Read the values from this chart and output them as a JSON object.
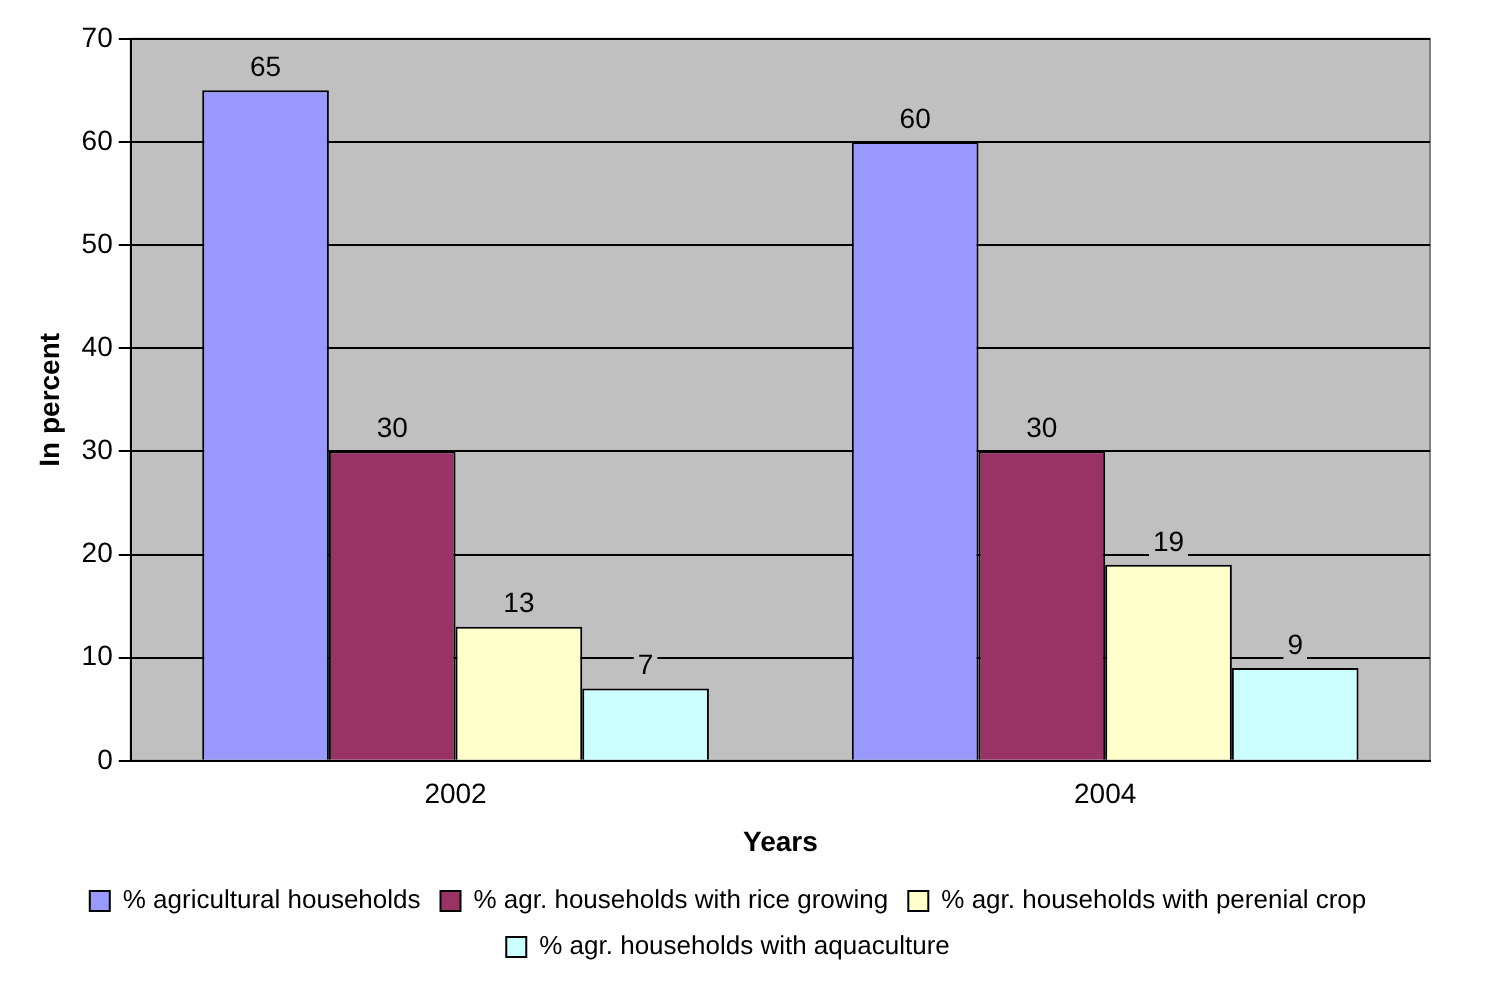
{
  "chart_data": {
    "type": "bar",
    "xlabel": "Years",
    "ylabel": "In percent",
    "categories": [
      "2002",
      "2004"
    ],
    "series": [
      {
        "name": "% agricultural households",
        "color": "#9999ff",
        "values": [
          65,
          60
        ]
      },
      {
        "name": "% agr. households with rice growing",
        "color": "#993366",
        "values": [
          30,
          30
        ]
      },
      {
        "name": "% agr. households with perenial crop",
        "color": "#ffffcc",
        "values": [
          13,
          19
        ]
      },
      {
        "name": "% agr. households with aquaculture",
        "color": "#ccffff",
        "values": [
          7,
          9
        ]
      }
    ],
    "ylim": [
      0,
      70
    ],
    "yticks": [
      0,
      10,
      20,
      30,
      40,
      50,
      60,
      70
    ],
    "grid": "y",
    "legend": "bottom",
    "data_labels": true
  }
}
